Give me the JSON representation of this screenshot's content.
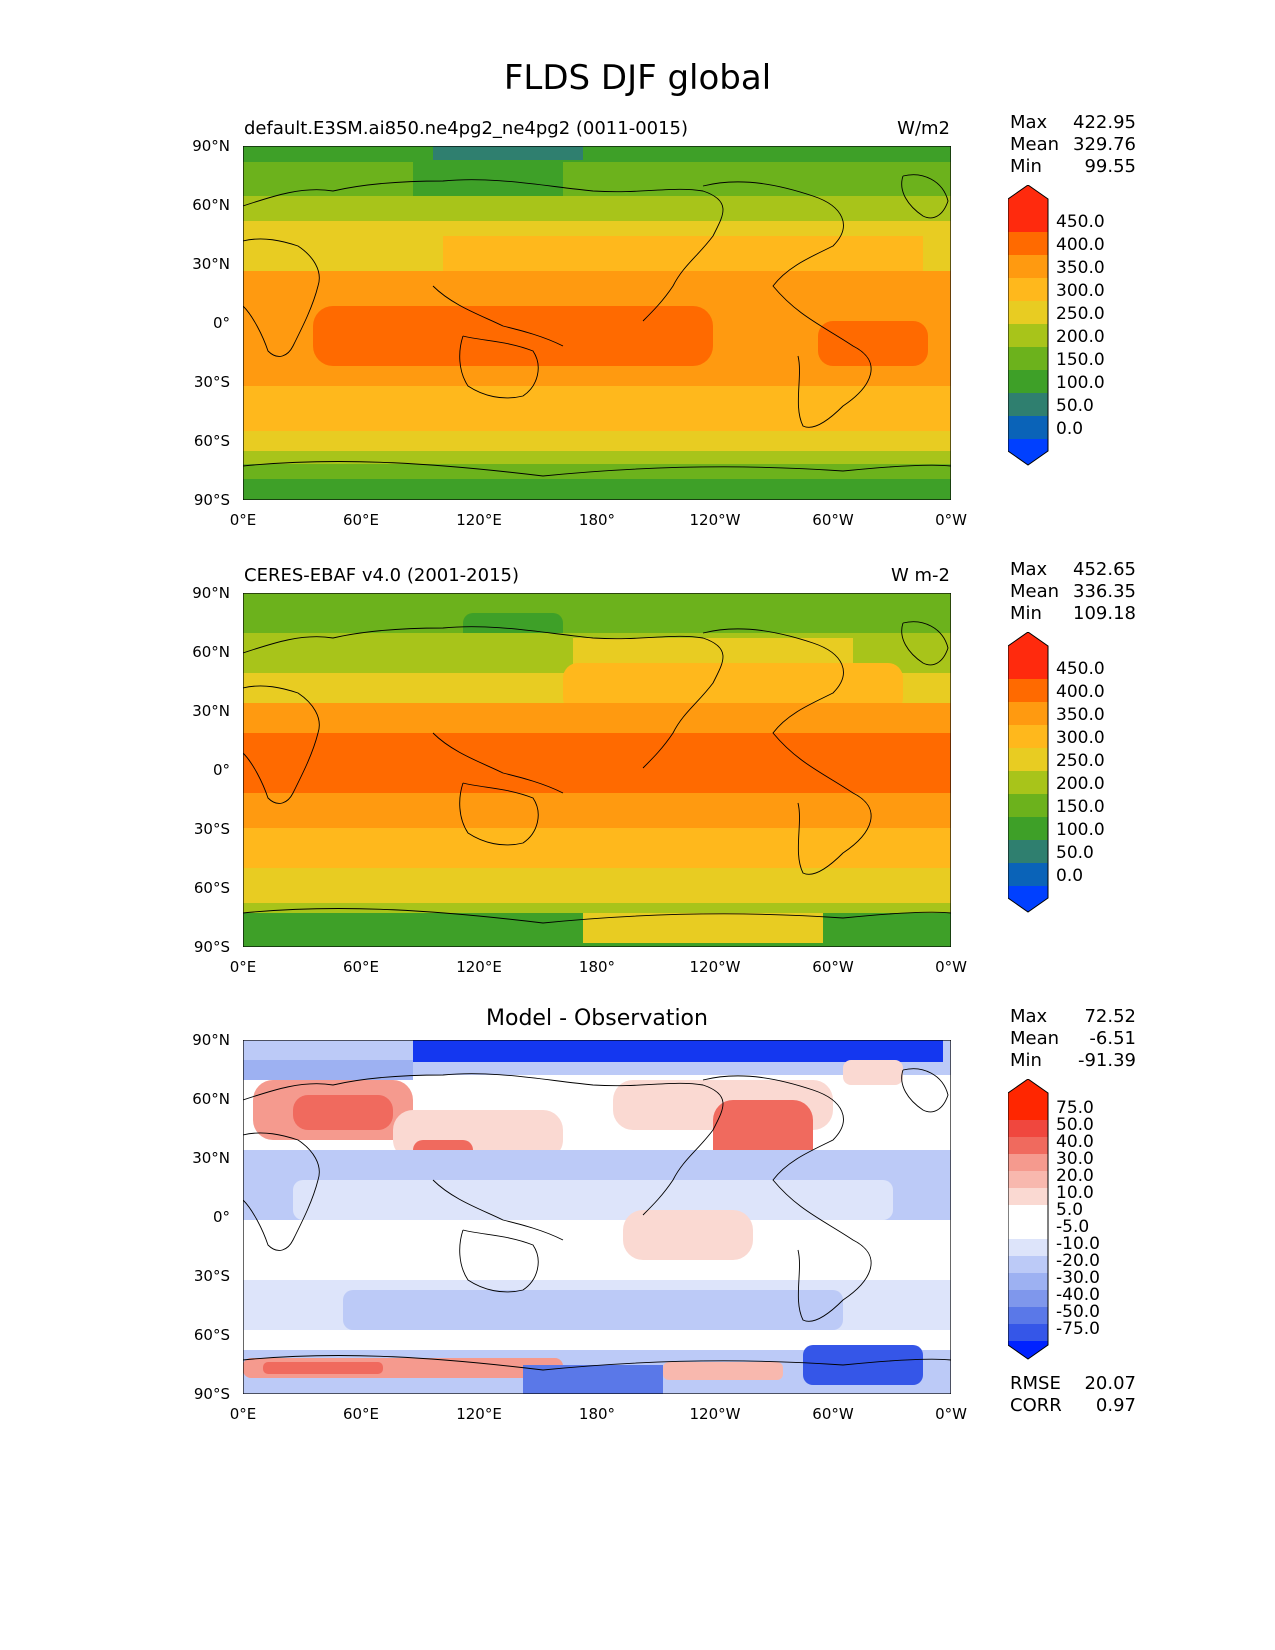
{
  "figure_title": "FLDS DJF global",
  "panels": [
    {
      "left_title": "default.E3SM.ai850.ne4pg2_ne4pg2 (0011-0015)",
      "units": "W/m2",
      "center_title": "",
      "stats": [
        {
          "label": "Max",
          "value": "422.95"
        },
        {
          "label": "Mean",
          "value": "329.76"
        },
        {
          "label": "Min",
          "value": "99.55"
        }
      ],
      "colorbar_labels": [
        "450.0",
        "400.0",
        "350.0",
        "300.0",
        "250.0",
        "200.0",
        "150.0",
        "100.0",
        "50.0",
        "0.0"
      ]
    },
    {
      "left_title": "CERES-EBAF v4.0 (2001-2015)",
      "units": "W m-2",
      "center_title": "",
      "stats": [
        {
          "label": "Max",
          "value": "452.65"
        },
        {
          "label": "Mean",
          "value": "336.35"
        },
        {
          "label": "Min",
          "value": "109.18"
        }
      ],
      "colorbar_labels": [
        "450.0",
        "400.0",
        "350.0",
        "300.0",
        "250.0",
        "200.0",
        "150.0",
        "100.0",
        "50.0",
        "0.0"
      ]
    },
    {
      "left_title": "",
      "units": "",
      "center_title": "Model - Observation",
      "stats": [
        {
          "label": "Max",
          "value": "72.52"
        },
        {
          "label": "Mean",
          "value": "-6.51"
        },
        {
          "label": "Min",
          "value": "-91.39"
        }
      ],
      "colorbar_labels": [
        "75.0",
        "50.0",
        "40.0",
        "30.0",
        "20.0",
        "10.0",
        "5.0",
        "-5.0",
        "-10.0",
        "-20.0",
        "-30.0",
        "-40.0",
        "-50.0",
        "-75.0"
      ],
      "metrics": [
        {
          "label": "RMSE",
          "value": "20.07"
        },
        {
          "label": "CORR",
          "value": "0.97"
        }
      ]
    }
  ],
  "lat_ticks": [
    "90°N",
    "60°N",
    "30°N",
    "0°",
    "30°S",
    "60°S",
    "90°S"
  ],
  "lon_ticks": [
    "0°E",
    "60°E",
    "120°E",
    "180°",
    "120°W",
    "60°W",
    "0°W"
  ],
  "abs_colors": [
    "#ff2a0d",
    "#ff6a00",
    "#ff9a10",
    "#ffb81c",
    "#e8cc22",
    "#a8c41a",
    "#6cb21c",
    "#3ea028",
    "#2f7f6f",
    "#0a63b8",
    "#0040ff"
  ],
  "diff_colors": [
    "#ff2600",
    "#f0473e",
    "#f06a5e",
    "#f59a8e",
    "#f8b8ae",
    "#fad9d2",
    "#ffffff",
    "#ffffff",
    "#dde4fa",
    "#bccaf7",
    "#9db1f2",
    "#7f97ec",
    "#5a78e8",
    "#3556e8",
    "#1437f0",
    "#0022ff"
  ]
}
